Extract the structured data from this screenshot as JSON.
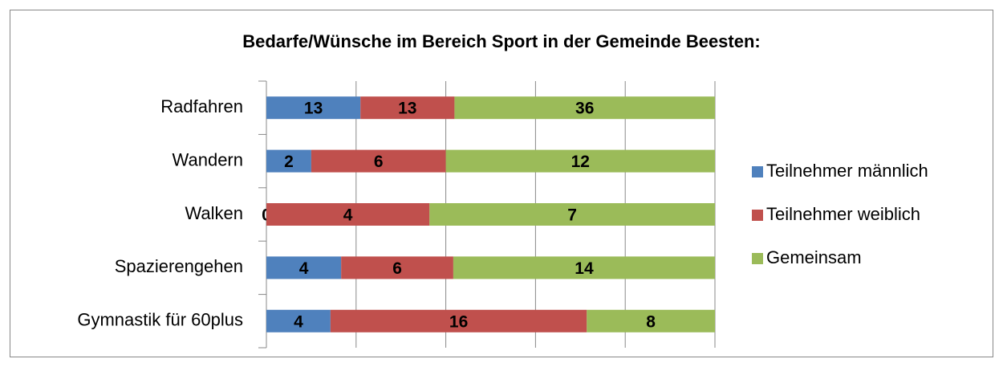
{
  "chart_data": {
    "type": "bar_percent_stacked",
    "title": "Bedarfe/Wünsche im Bereich Sport in der Gemeinde Beesten:",
    "categories": [
      "Radfahren",
      "Wandern",
      "Walken",
      "Spazierengehen",
      "Gymnastik für 60plus"
    ],
    "series": [
      {
        "name": "Teilnehmer männlich",
        "color": "#4f81bd",
        "values": [
          13,
          2,
          0,
          4,
          4
        ]
      },
      {
        "name": "Teilnehmer weiblich",
        "color": "#c0504d",
        "values": [
          13,
          6,
          4,
          6,
          16
        ]
      },
      {
        "name": "Gemeinsam",
        "color": "#9bbb59",
        "values": [
          36,
          12,
          7,
          14,
          8
        ]
      }
    ],
    "grid": true,
    "legend": "right"
  }
}
